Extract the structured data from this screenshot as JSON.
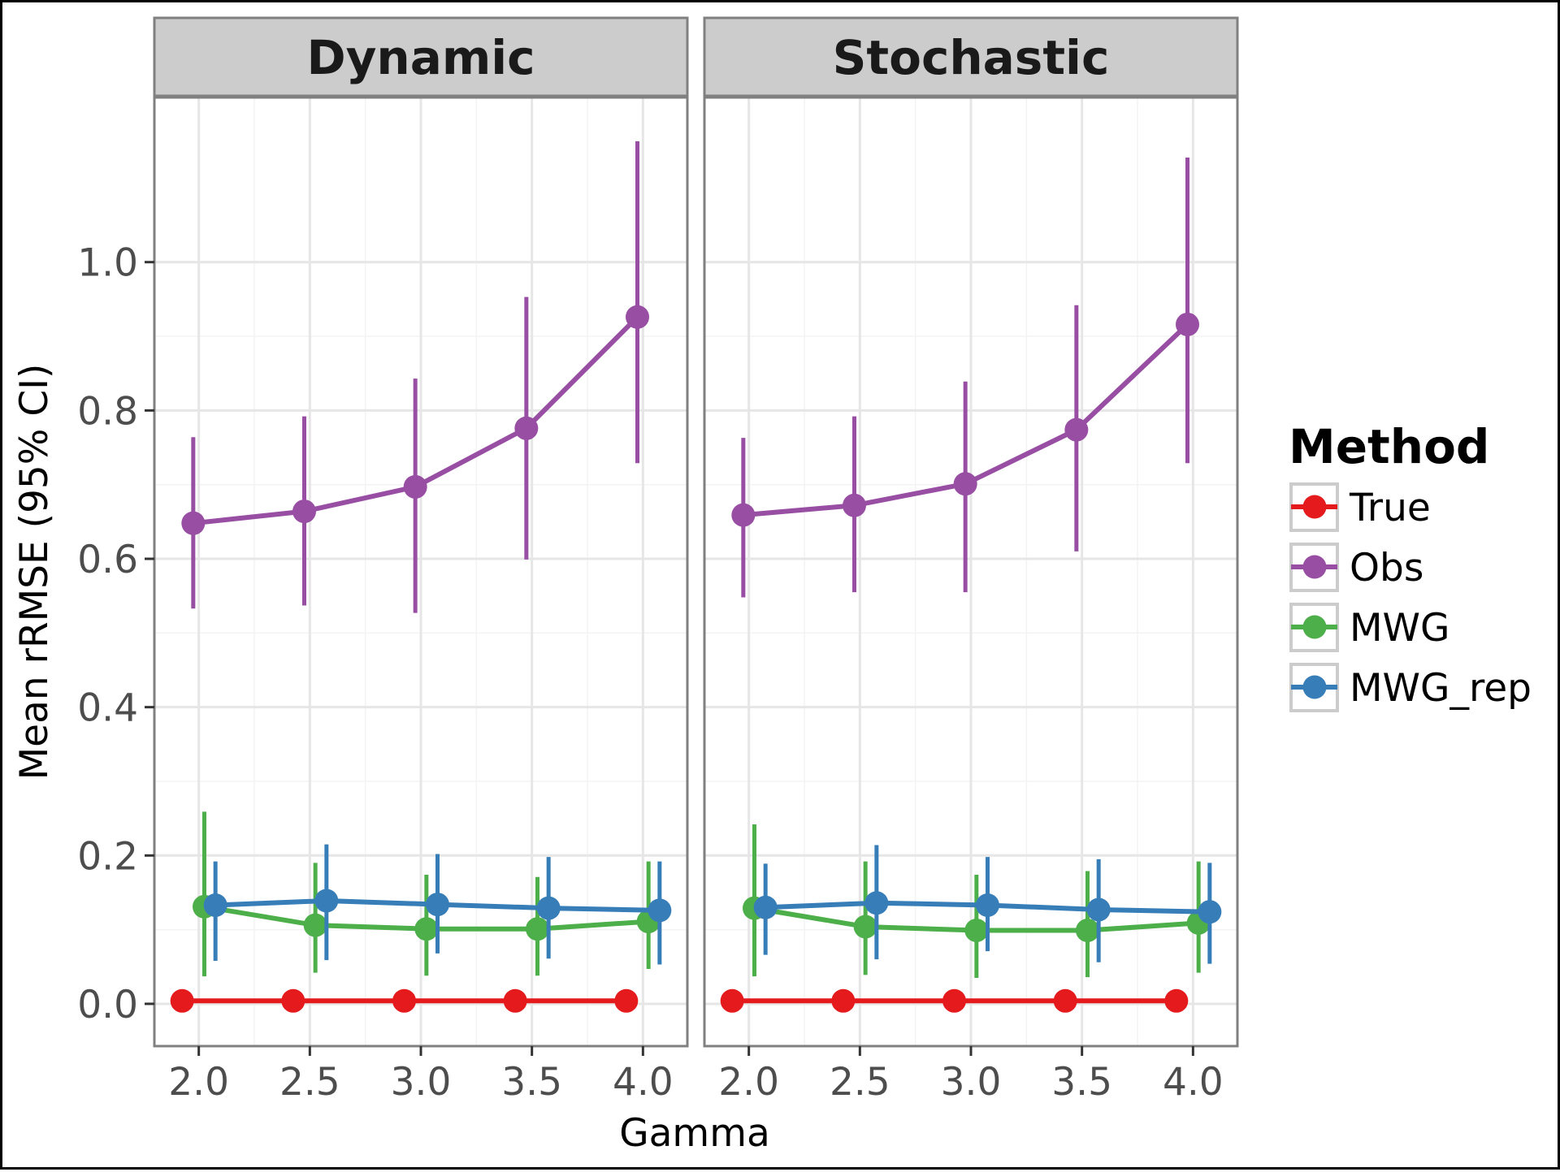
{
  "chart_data": {
    "type": "line",
    "xlabel": "Gamma",
    "ylabel": "Mean rRMSE (95% CI)",
    "xlim": [
      1.8,
      4.2
    ],
    "ylim": [
      -0.057,
      1.222
    ],
    "x_ticks": [
      "2.0",
      "2.5",
      "3.0",
      "3.5",
      "4.0"
    ],
    "x_tick_values": [
      2.0,
      2.5,
      3.0,
      3.5,
      4.0
    ],
    "y_ticks": [
      "0.0",
      "0.2",
      "0.4",
      "0.6",
      "0.8",
      "1.0"
    ],
    "y_tick_values": [
      0.0,
      0.2,
      0.4,
      0.6,
      0.8,
      1.0
    ],
    "grid": true,
    "error_bars": "95% CI",
    "legend": {
      "title": "Method",
      "placement": "right",
      "entries": [
        "True",
        "Obs",
        "MWG",
        "MWG_rep"
      ]
    },
    "x": [
      2.0,
      2.5,
      3.0,
      3.5,
      4.0
    ],
    "panels": [
      {
        "title": "Dynamic",
        "series": [
          {
            "name": "True",
            "color": "#e41a1c",
            "dodge": -0.075,
            "values": [
              0.004,
              0.004,
              0.004,
              0.004,
              0.004
            ],
            "lower": [
              0.004,
              0.004,
              0.004,
              0.004,
              0.004
            ],
            "upper": [
              0.004,
              0.004,
              0.004,
              0.004,
              0.004
            ]
          },
          {
            "name": "Obs",
            "color": "#984ea3",
            "dodge": -0.025,
            "values": [
              0.648,
              0.664,
              0.697,
              0.776,
              0.926
            ],
            "lower": [
              0.533,
              0.537,
              0.527,
              0.599,
              0.729
            ],
            "upper": [
              0.764,
              0.792,
              0.843,
              0.953,
              1.163
            ]
          },
          {
            "name": "MWG",
            "color": "#4daf4a",
            "dodge": 0.025,
            "values": [
              0.131,
              0.106,
              0.101,
              0.101,
              0.111
            ],
            "lower": [
              0.037,
              0.042,
              0.038,
              0.038,
              0.047
            ],
            "upper": [
              0.259,
              0.19,
              0.174,
              0.171,
              0.192
            ]
          },
          {
            "name": "MWG_rep",
            "color": "#377eb8",
            "dodge": 0.075,
            "values": [
              0.133,
              0.139,
              0.134,
              0.129,
              0.126
            ],
            "lower": [
              0.058,
              0.059,
              0.068,
              0.061,
              0.053
            ],
            "upper": [
              0.192,
              0.215,
              0.202,
              0.198,
              0.192
            ]
          }
        ]
      },
      {
        "title": "Stochastic",
        "series": [
          {
            "name": "True",
            "color": "#e41a1c",
            "dodge": -0.075,
            "values": [
              0.004,
              0.004,
              0.004,
              0.004,
              0.004
            ],
            "lower": [
              0.004,
              0.004,
              0.004,
              0.004,
              0.004
            ],
            "upper": [
              0.004,
              0.004,
              0.004,
              0.004,
              0.004
            ]
          },
          {
            "name": "Obs",
            "color": "#984ea3",
            "dodge": -0.025,
            "values": [
              0.659,
              0.672,
              0.701,
              0.774,
              0.916
            ],
            "lower": [
              0.548,
              0.555,
              0.555,
              0.61,
              0.729
            ],
            "upper": [
              0.763,
              0.792,
              0.839,
              0.942,
              1.141
            ]
          },
          {
            "name": "MWG",
            "color": "#4daf4a",
            "dodge": 0.025,
            "values": [
              0.129,
              0.104,
              0.099,
              0.099,
              0.109
            ],
            "lower": [
              0.037,
              0.039,
              0.035,
              0.036,
              0.042
            ],
            "upper": [
              0.242,
              0.192,
              0.174,
              0.179,
              0.192
            ]
          },
          {
            "name": "MWG_rep",
            "color": "#377eb8",
            "dodge": 0.075,
            "values": [
              0.13,
              0.136,
              0.133,
              0.127,
              0.124
            ],
            "lower": [
              0.066,
              0.06,
              0.071,
              0.056,
              0.054
            ],
            "upper": [
              0.189,
              0.214,
              0.198,
              0.195,
              0.19
            ]
          }
        ]
      }
    ]
  },
  "colors": {
    "strip_background": "#cccccc",
    "panel_border": "#808080",
    "grid_major": "#e6e6e6",
    "grid_minor": "#f3f3f3"
  }
}
